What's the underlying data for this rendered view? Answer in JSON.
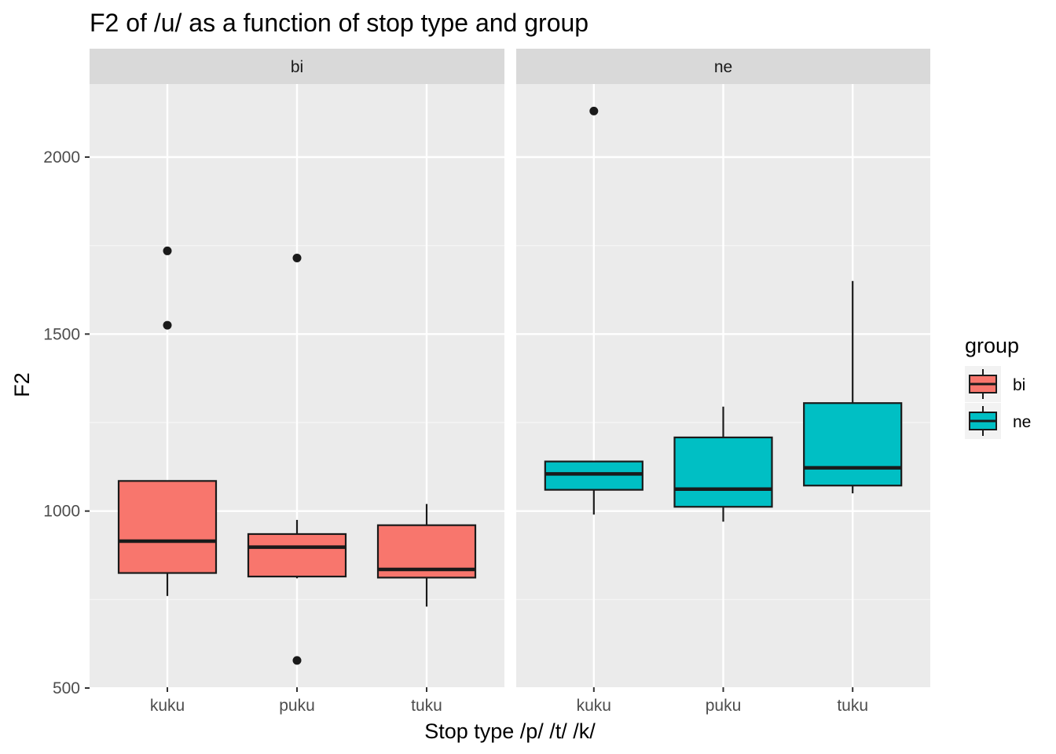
{
  "chart_data": {
    "type": "boxplot",
    "title": "F2 of /u/ as a function of stop type and group",
    "xlabel": "Stop type /p/ /t/ /k/",
    "ylabel": "F2",
    "ylim": [
      500,
      2200
    ],
    "y_ticks": [
      500,
      1000,
      1500,
      2000
    ],
    "grid": true,
    "categories": [
      "kuku",
      "puku",
      "tuku"
    ],
    "legend": {
      "title": "group",
      "position": "right",
      "entries": [
        {
          "name": "bi",
          "color": "#F8766D"
        },
        {
          "name": "ne",
          "color": "#00BFC4"
        }
      ]
    },
    "facets": [
      {
        "name": "bi",
        "color": "#F8766D",
        "boxes": [
          {
            "category": "kuku",
            "lower_whisker": 760,
            "q1": 825,
            "median": 915,
            "q3": 1085,
            "upper_whisker": 1085,
            "outliers": [
              1525,
              1735
            ]
          },
          {
            "category": "puku",
            "lower_whisker": 810,
            "q1": 815,
            "median": 898,
            "q3": 935,
            "upper_whisker": 975,
            "outliers": [
              578,
              1715
            ]
          },
          {
            "category": "tuku",
            "lower_whisker": 730,
            "q1": 812,
            "median": 835,
            "q3": 960,
            "upper_whisker": 1020,
            "outliers": []
          }
        ]
      },
      {
        "name": "ne",
        "color": "#00BFC4",
        "boxes": [
          {
            "category": "kuku",
            "lower_whisker": 990,
            "q1": 1060,
            "median": 1105,
            "q3": 1140,
            "upper_whisker": 1140,
            "outliers": [
              2130
            ]
          },
          {
            "category": "puku",
            "lower_whisker": 970,
            "q1": 1012,
            "median": 1062,
            "q3": 1208,
            "upper_whisker": 1295,
            "outliers": []
          },
          {
            "category": "tuku",
            "lower_whisker": 1050,
            "q1": 1072,
            "median": 1122,
            "q3": 1305,
            "upper_whisker": 1650,
            "outliers": []
          }
        ]
      }
    ]
  }
}
